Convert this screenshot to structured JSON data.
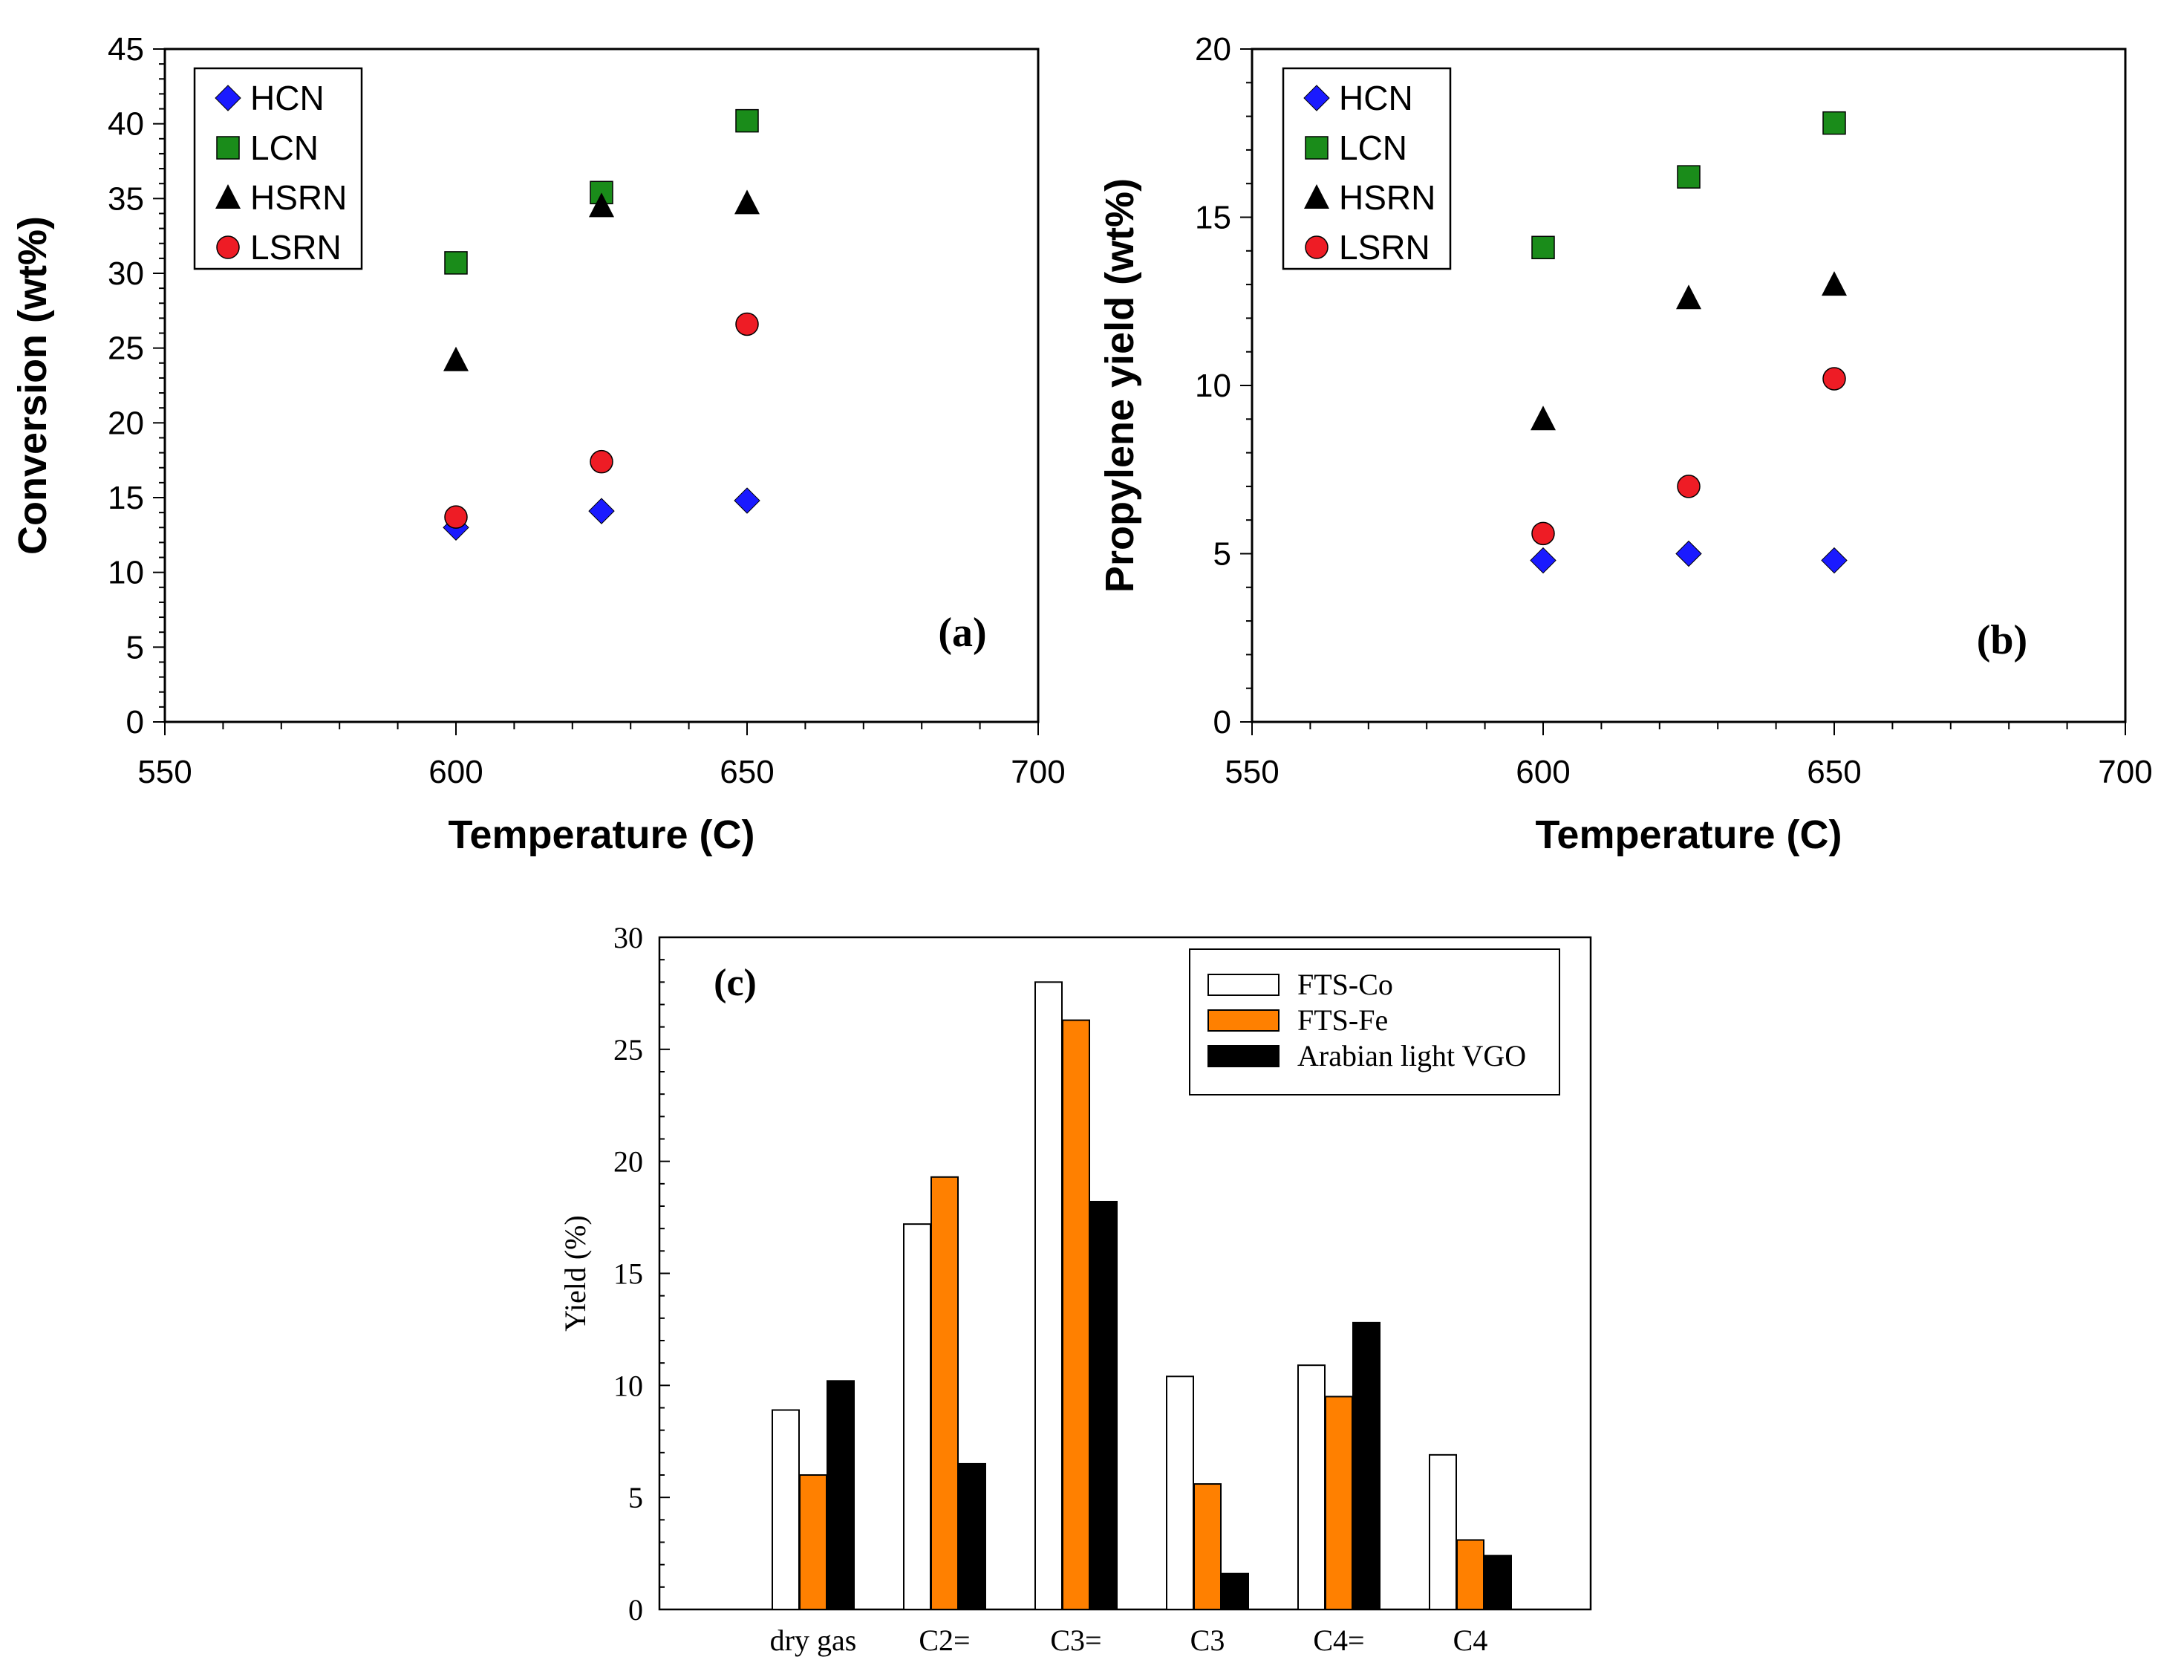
{
  "chart_data": [
    {
      "id": "a",
      "type": "scatter",
      "panel_label": "(a)",
      "xlabel": "Temperature (C)",
      "ylabel": "Conversion (wt%)",
      "xlim": [
        550,
        700
      ],
      "ylim": [
        0,
        45
      ],
      "xticks": [
        550,
        600,
        650,
        700
      ],
      "yticks": [
        0,
        5,
        10,
        15,
        20,
        25,
        30,
        35,
        40,
        45
      ],
      "grid": false,
      "legend": "top-left",
      "series": [
        {
          "name": "HCN",
          "marker": "diamond",
          "color": "#1a1aff",
          "x": [
            600,
            625,
            650
          ],
          "y": [
            13.0,
            14.1,
            14.8
          ]
        },
        {
          "name": "LCN",
          "marker": "square",
          "color": "#1a8c1a",
          "x": [
            600,
            625,
            650
          ],
          "y": [
            30.7,
            35.4,
            40.2
          ]
        },
        {
          "name": "HSRN",
          "marker": "triangle",
          "color": "#000000",
          "x": [
            600,
            625,
            650
          ],
          "y": [
            24.2,
            34.5,
            34.7
          ]
        },
        {
          "name": "LSRN",
          "marker": "circle",
          "color": "#ee1c25",
          "x": [
            600,
            625,
            650
          ],
          "y": [
            13.7,
            17.4,
            26.6
          ]
        }
      ]
    },
    {
      "id": "b",
      "type": "scatter",
      "panel_label": "(b)",
      "xlabel": "Temperature (C)",
      "ylabel": "Propylene yield (wt%)",
      "xlim": [
        550,
        700
      ],
      "ylim": [
        0,
        20
      ],
      "xticks": [
        550,
        600,
        650,
        700
      ],
      "yticks": [
        0,
        5,
        10,
        15,
        20
      ],
      "grid": false,
      "legend": "top-left",
      "series": [
        {
          "name": "HCN",
          "marker": "diamond",
          "color": "#1a1aff",
          "x": [
            600,
            625,
            650
          ],
          "y": [
            4.8,
            5.0,
            4.8
          ]
        },
        {
          "name": "LCN",
          "marker": "square",
          "color": "#1a8c1a",
          "x": [
            600,
            625,
            650
          ],
          "y": [
            14.1,
            16.2,
            17.8
          ]
        },
        {
          "name": "HSRN",
          "marker": "triangle",
          "color": "#000000",
          "x": [
            600,
            625,
            650
          ],
          "y": [
            9.0,
            12.6,
            13.0
          ]
        },
        {
          "name": "LSRN",
          "marker": "circle",
          "color": "#ee1c25",
          "x": [
            600,
            625,
            650
          ],
          "y": [
            5.6,
            7.0,
            10.2
          ]
        }
      ]
    },
    {
      "id": "c",
      "type": "bar",
      "panel_label": "(c)",
      "xlabel": "",
      "ylabel": "Yield (%)",
      "ylim": [
        0,
        30
      ],
      "yticks": [
        0,
        5,
        10,
        15,
        20,
        25,
        30
      ],
      "grid": false,
      "legend": "top-right",
      "categories": [
        "dry gas",
        "C2=",
        "C3=",
        "C3",
        "C4=",
        "C4"
      ],
      "series": [
        {
          "name": "FTS-Co",
          "color": "#ffffff",
          "values": [
            8.9,
            17.2,
            28.0,
            10.4,
            10.9,
            6.9
          ]
        },
        {
          "name": "FTS-Fe",
          "color": "#ff8000",
          "values": [
            6.0,
            19.3,
            26.3,
            5.6,
            9.5,
            3.1
          ]
        },
        {
          "name": "Arabian light VGO",
          "color": "#000000",
          "values": [
            10.2,
            6.5,
            18.2,
            1.6,
            12.8,
            2.4
          ]
        }
      ]
    }
  ]
}
